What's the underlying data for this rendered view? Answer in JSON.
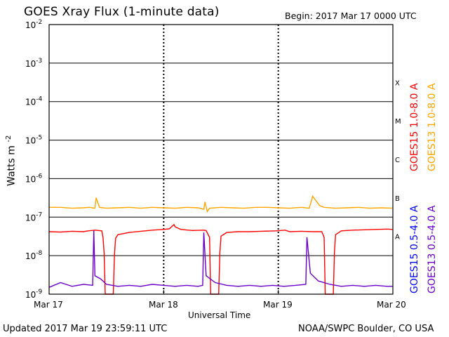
{
  "header": {
    "title": "GOES Xray Flux (1-minute data)",
    "begin": "Begin:  2017 Mar 17 0000 UTC"
  },
  "footer": {
    "updated": "Updated 2017 Mar 19 23:59:11 UTC",
    "credit": "NOAA/SWPC Boulder, CO USA"
  },
  "colors": {
    "goes15_long": "#ff0000",
    "goes13_long": "#ffa500",
    "goes15_short": "#0000ff",
    "goes13_short": "#6a00c8",
    "grid": "#000000"
  },
  "chart_data": {
    "type": "line",
    "title": "GOES Xray Flux (1-minute data)",
    "xlabel": "Universal Time",
    "ylabel": "Watts m",
    "ylabel_superscript": "-2",
    "yscale": "log",
    "ylim": [
      1e-09,
      0.01
    ],
    "xlim_days": [
      0,
      3
    ],
    "x_tick_labels": [
      "Mar 17",
      "Mar 18",
      "Mar 19",
      "Mar 20"
    ],
    "y_ticks": [
      {
        "value": 1e-09,
        "base": "10",
        "exp": "-9"
      },
      {
        "value": 1e-08,
        "base": "10",
        "exp": "-8"
      },
      {
        "value": 1e-07,
        "base": "10",
        "exp": "-7"
      },
      {
        "value": 1e-06,
        "base": "10",
        "exp": "-6"
      },
      {
        "value": 1e-05,
        "base": "10",
        "exp": "-5"
      },
      {
        "value": 0.0001,
        "base": "10",
        "exp": "-4"
      },
      {
        "value": 0.001,
        "base": "10",
        "exp": "-3"
      },
      {
        "value": 0.01,
        "base": "10",
        "exp": "-2"
      }
    ],
    "flare_classes": [
      {
        "label": "A",
        "value": 1e-08
      },
      {
        "label": "B",
        "value": 1e-07
      },
      {
        "label": "C",
        "value": 1e-06
      },
      {
        "label": "M",
        "value": 1e-05
      },
      {
        "label": "X",
        "value": 0.0001
      }
    ],
    "grid": true,
    "legend_position": "right-vertical",
    "series": [
      {
        "name": "GOES15 1.0-8.0 A",
        "color": "#ff0000",
        "points": [
          [
            0,
            4.2e-08
          ],
          [
            0.1,
            4.1e-08
          ],
          [
            0.2,
            4.3e-08
          ],
          [
            0.3,
            4.2e-08
          ],
          [
            0.34,
            4.4e-08
          ],
          [
            0.4,
            4.6e-08
          ],
          [
            0.46,
            4.4e-08
          ],
          [
            0.47,
            3e-08
          ],
          [
            0.48,
            1.2e-08
          ],
          [
            0.49,
            1e-09
          ],
          [
            0.56,
            1e-09
          ],
          [
            0.57,
            1e-08
          ],
          [
            0.58,
            2.8e-08
          ],
          [
            0.6,
            3.5e-08
          ],
          [
            0.7,
            4e-08
          ],
          [
            0.8,
            4.3e-08
          ],
          [
            0.9,
            4.6e-08
          ],
          [
            1.0,
            4.8e-08
          ],
          [
            1.05,
            5e-08
          ],
          [
            1.09,
            6.4e-08
          ],
          [
            1.1,
            5.6e-08
          ],
          [
            1.15,
            4.8e-08
          ],
          [
            1.25,
            4.5e-08
          ],
          [
            1.35,
            4.6e-08
          ],
          [
            1.37,
            4.5e-08
          ],
          [
            1.4,
            3e-08
          ],
          [
            1.41,
            1e-09
          ],
          [
            1.48,
            1e-09
          ],
          [
            1.49,
            1.2e-08
          ],
          [
            1.5,
            3.2e-08
          ],
          [
            1.55,
            4e-08
          ],
          [
            1.65,
            4.2e-08
          ],
          [
            1.75,
            4.2e-08
          ],
          [
            1.85,
            4.3e-08
          ],
          [
            1.98,
            4.4e-08
          ],
          [
            2.06,
            4.6e-08
          ],
          [
            2.1,
            4.2e-08
          ],
          [
            2.2,
            4.3e-08
          ],
          [
            2.3,
            4.2e-08
          ],
          [
            2.38,
            4.2e-08
          ],
          [
            2.4,
            3e-08
          ],
          [
            2.41,
            1e-09
          ],
          [
            2.48,
            1e-09
          ],
          [
            2.49,
            1.2e-08
          ],
          [
            2.5,
            3.5e-08
          ],
          [
            2.55,
            4.4e-08
          ],
          [
            2.65,
            4.6e-08
          ],
          [
            2.75,
            4.7e-08
          ],
          [
            2.85,
            4.8e-08
          ],
          [
            2.95,
            4.9e-08
          ],
          [
            3.0,
            4.8e-08
          ]
        ]
      },
      {
        "name": "GOES13 1.0-8.0 A",
        "color": "#ffa500",
        "points": [
          [
            0,
            1.8e-07
          ],
          [
            0.1,
            1.8e-07
          ],
          [
            0.2,
            1.7e-07
          ],
          [
            0.3,
            1.75e-07
          ],
          [
            0.35,
            1.8e-07
          ],
          [
            0.4,
            1.7e-07
          ],
          [
            0.41,
            3.2e-07
          ],
          [
            0.44,
            1.8e-07
          ],
          [
            0.5,
            1.7e-07
          ],
          [
            0.6,
            1.75e-07
          ],
          [
            0.7,
            1.8e-07
          ],
          [
            0.8,
            1.7e-07
          ],
          [
            0.9,
            1.8e-07
          ],
          [
            1.0,
            1.75e-07
          ],
          [
            1.1,
            1.7e-07
          ],
          [
            1.2,
            1.8e-07
          ],
          [
            1.3,
            1.75e-07
          ],
          [
            1.35,
            1.6e-07
          ],
          [
            1.36,
            2.5e-07
          ],
          [
            1.38,
            1.4e-07
          ],
          [
            1.4,
            1.7e-07
          ],
          [
            1.5,
            1.8e-07
          ],
          [
            1.6,
            1.75e-07
          ],
          [
            1.7,
            1.7e-07
          ],
          [
            1.8,
            1.8e-07
          ],
          [
            1.9,
            1.8e-07
          ],
          [
            2.0,
            1.75e-07
          ],
          [
            2.1,
            1.7e-07
          ],
          [
            2.2,
            1.8e-07
          ],
          [
            2.27,
            1.7e-07
          ],
          [
            2.3,
            3.5e-07
          ],
          [
            2.36,
            2e-07
          ],
          [
            2.4,
            1.8e-07
          ],
          [
            2.5,
            1.7e-07
          ],
          [
            2.6,
            1.75e-07
          ],
          [
            2.7,
            1.8e-07
          ],
          [
            2.8,
            1.7e-07
          ],
          [
            2.9,
            1.75e-07
          ],
          [
            3.0,
            1.7e-07
          ]
        ]
      },
      {
        "name": "GOES15 0.5-4.0 A",
        "color": "#0000ff",
        "points": []
      },
      {
        "name": "GOES13 0.5-4.0 A",
        "color": "#6a00c8",
        "points": [
          [
            0,
            1.5e-09
          ],
          [
            0.1,
            2e-09
          ],
          [
            0.2,
            1.6e-09
          ],
          [
            0.3,
            1.8e-09
          ],
          [
            0.38,
            1.7e-09
          ],
          [
            0.39,
            4.5e-08
          ],
          [
            0.4,
            3e-09
          ],
          [
            0.45,
            2.5e-09
          ],
          [
            0.5,
            1.8e-09
          ],
          [
            0.6,
            1.6e-09
          ],
          [
            0.7,
            1.7e-09
          ],
          [
            0.8,
            1.6e-09
          ],
          [
            0.9,
            1.8e-09
          ],
          [
            1.0,
            1.7e-09
          ],
          [
            1.1,
            1.6e-09
          ],
          [
            1.2,
            1.7e-09
          ],
          [
            1.3,
            1.6e-09
          ],
          [
            1.34,
            1.7e-09
          ],
          [
            1.35,
            4e-08
          ],
          [
            1.37,
            3e-09
          ],
          [
            1.45,
            2e-09
          ],
          [
            1.55,
            1.7e-09
          ],
          [
            1.65,
            1.6e-09
          ],
          [
            1.75,
            1.7e-09
          ],
          [
            1.85,
            1.6e-09
          ],
          [
            1.95,
            1.7e-09
          ],
          [
            2.05,
            1.6e-09
          ],
          [
            2.15,
            1.7e-09
          ],
          [
            2.24,
            1.8e-09
          ],
          [
            2.25,
            3e-08
          ],
          [
            2.28,
            3.5e-09
          ],
          [
            2.35,
            2.2e-09
          ],
          [
            2.45,
            1.8e-09
          ],
          [
            2.55,
            1.6e-09
          ],
          [
            2.65,
            1.7e-09
          ],
          [
            2.75,
            1.6e-09
          ],
          [
            2.85,
            1.7e-09
          ],
          [
            2.95,
            1.6e-09
          ],
          [
            3.0,
            1.6e-09
          ]
        ]
      }
    ]
  }
}
